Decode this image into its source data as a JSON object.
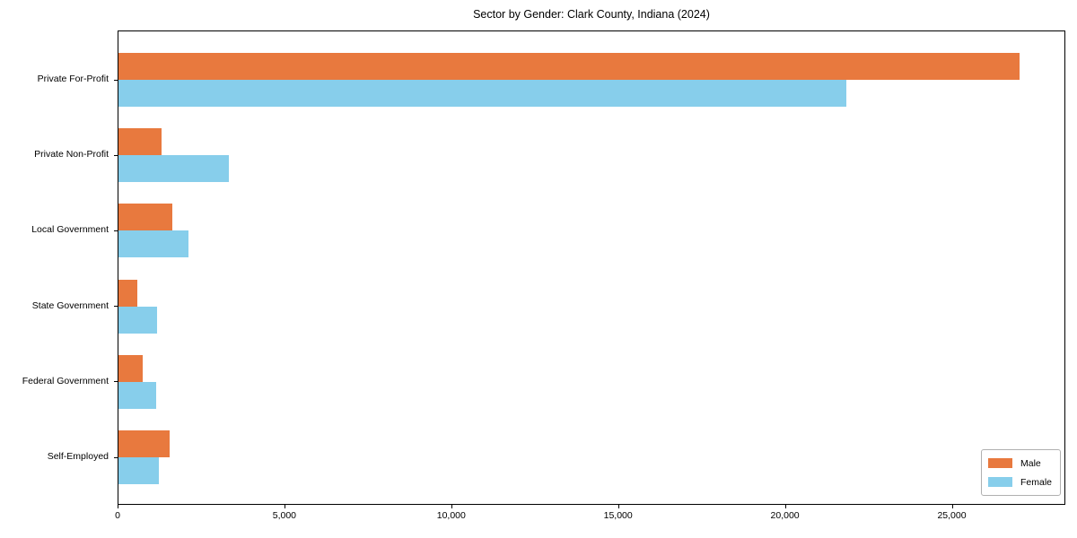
{
  "chart_data": {
    "type": "bar",
    "orientation": "horizontal",
    "title": "Sector by Gender: Clark County, Indiana (2024)",
    "categories": [
      "Private For-Profit",
      "Private Non-Profit",
      "Local Government",
      "State Government",
      "Federal Government",
      "Self-Employed"
    ],
    "series": [
      {
        "name": "Male",
        "color": "#e8793e",
        "values": [
          27000,
          1300,
          1600,
          570,
          720,
          1540
        ]
      },
      {
        "name": "Female",
        "color": "#87ceeb",
        "values": [
          21800,
          3300,
          2100,
          1160,
          1130,
          1210
        ]
      }
    ],
    "xlabel": "",
    "ylabel": "",
    "xlim": [
      0,
      28350
    ],
    "xticks": [
      0,
      5000,
      10000,
      15000,
      20000,
      25000
    ],
    "xtick_labels": [
      "0",
      "5,000",
      "10,000",
      "15,000",
      "20,000",
      "25,000"
    ],
    "grid": false,
    "legend_position": "lower right",
    "background_color": "#ffffff",
    "axis_color": "#000000"
  }
}
